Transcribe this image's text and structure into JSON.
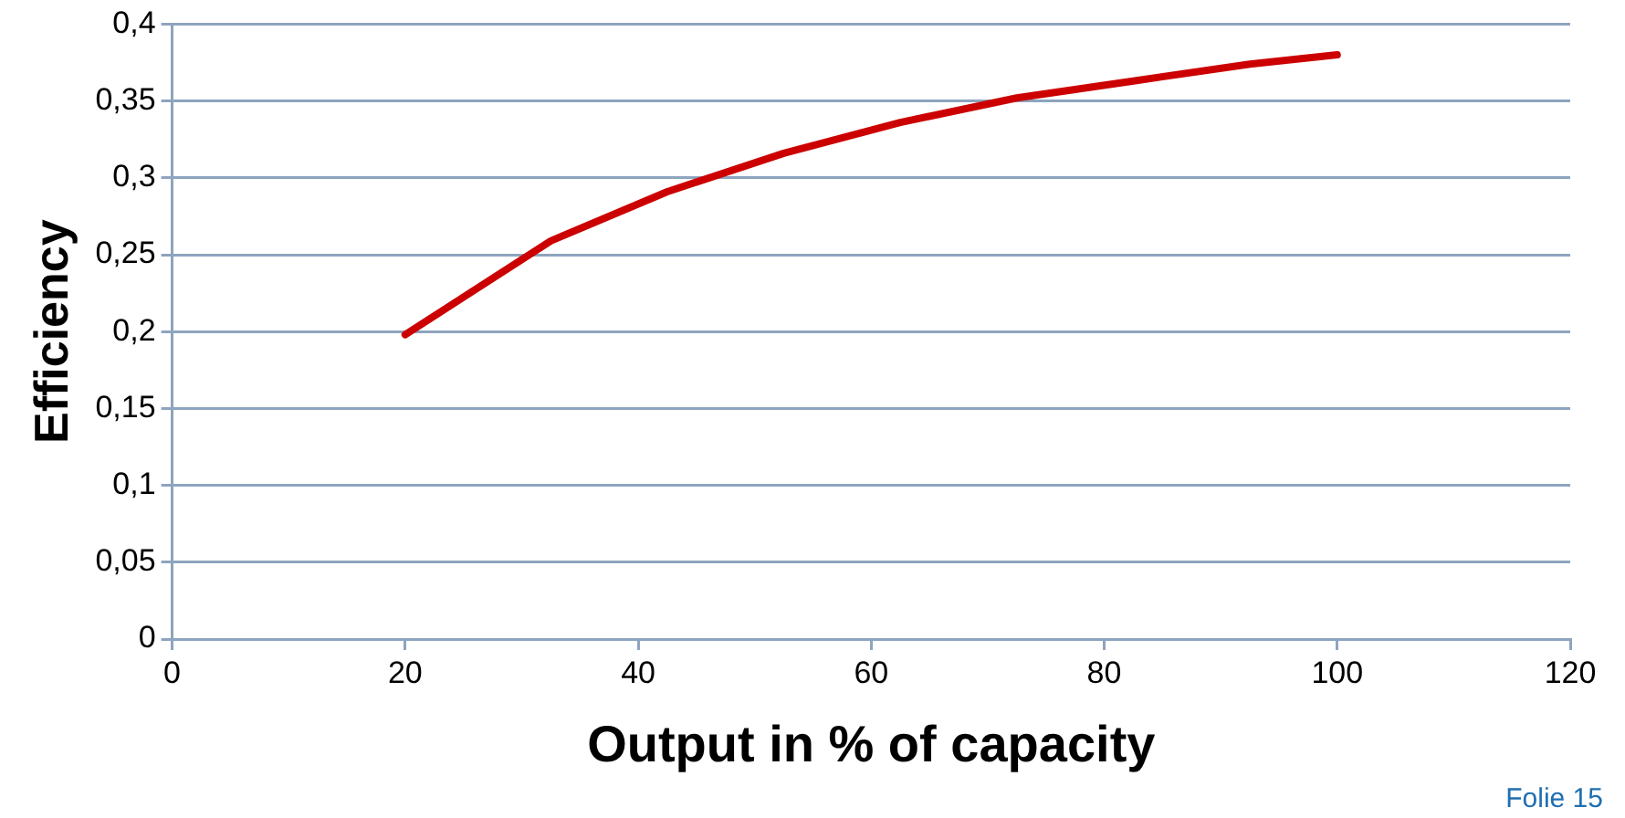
{
  "chart_data": {
    "type": "line",
    "xlabel": "Output in % of capacity",
    "ylabel": "Efficiency",
    "x": [
      20,
      32.5,
      42.5,
      52.5,
      62.5,
      72.5,
      82.5,
      92.5,
      100
    ],
    "series": [
      {
        "color": "#cc0000",
        "values": [
          0.198,
          0.259,
          0.291,
          0.316,
          0.336,
          0.352,
          0.363,
          0.374,
          0.38
        ]
      }
    ],
    "xlim": [
      0,
      120
    ],
    "xticks": [
      0,
      20,
      40,
      60,
      80,
      100,
      120
    ],
    "ylim": [
      0,
      0.4
    ],
    "yticks": [
      {
        "value": 0,
        "label": "0"
      },
      {
        "value": 0.05,
        "label": "0,05"
      },
      {
        "value": 0.1,
        "label": "0,1"
      },
      {
        "value": 0.15,
        "label": "0,15"
      },
      {
        "value": 0.2,
        "label": "0,2"
      },
      {
        "value": 0.25,
        "label": "0,25"
      },
      {
        "value": 0.3,
        "label": "0,3"
      },
      {
        "value": 0.35,
        "label": "0,35"
      },
      {
        "value": 0.4,
        "label": "0,4"
      }
    ],
    "grid": "y",
    "marker": "none",
    "line_style": "solid",
    "legend": false,
    "annotations": [
      "Folie 15"
    ]
  }
}
